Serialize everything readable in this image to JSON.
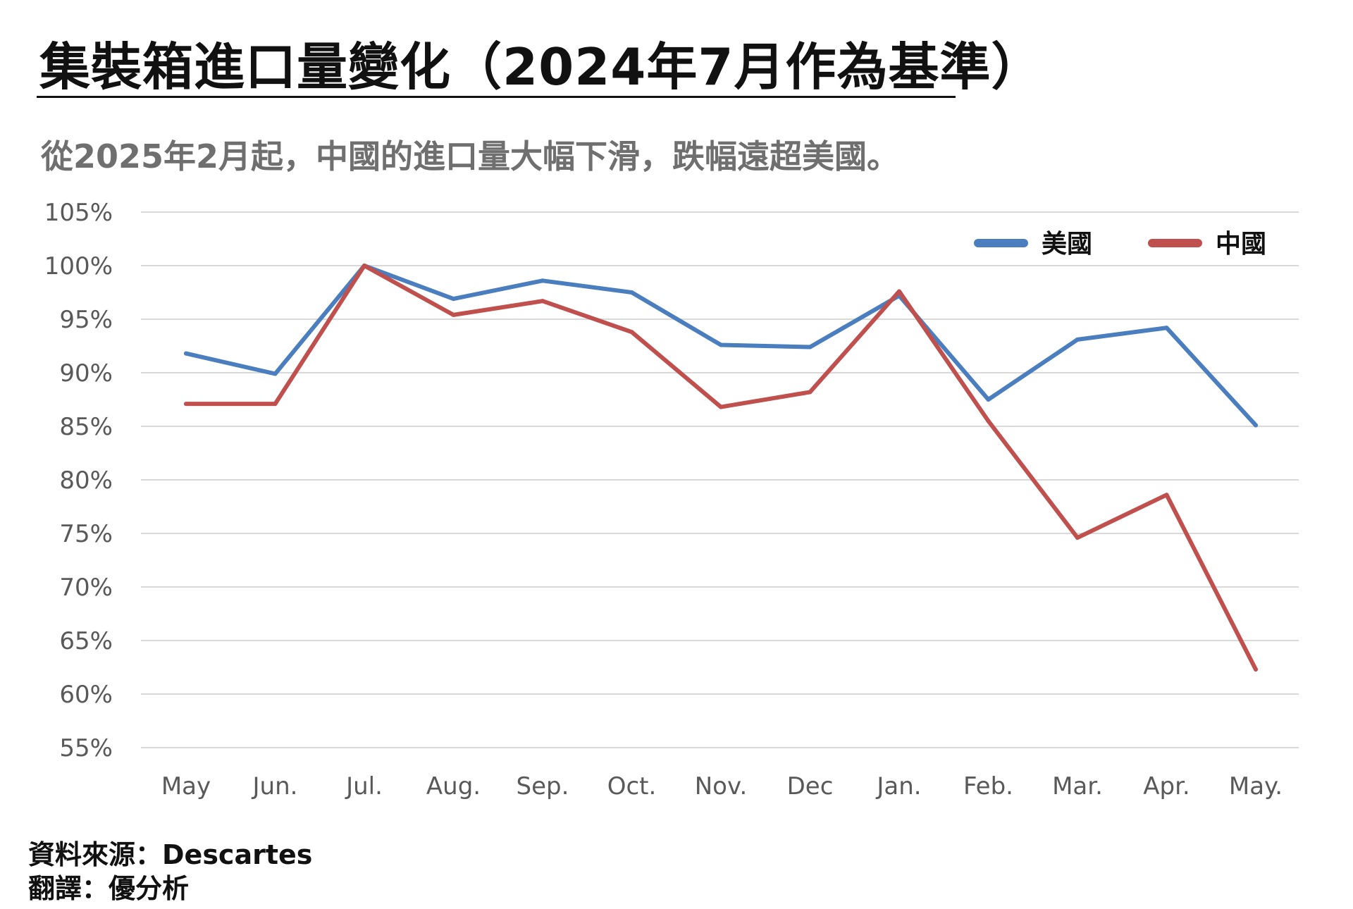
{
  "header": {
    "title": "集裝箱進口量變化（2024年7月作為基準）",
    "subtitle": "從2025年2月起，中國的進口量大幅下滑，跌幅遠超美國。"
  },
  "footer": {
    "source": "資料來源：Descartes",
    "translator": "翻譯：優分析"
  },
  "chart_data": {
    "type": "line",
    "title": "",
    "xlabel": "",
    "ylabel": "",
    "categories": [
      "May",
      "Jun.",
      "Jul.",
      "Aug.",
      "Sep.",
      "Oct.",
      "Nov.",
      "Dec",
      "Jan.",
      "Feb.",
      "Mar.",
      "Apr.",
      "May."
    ],
    "y_ticks": [
      "105%",
      "100%",
      "95%",
      "90%",
      "85%",
      "80%",
      "75%",
      "70%",
      "65%",
      "60%",
      "55%"
    ],
    "ylim": [
      55,
      105
    ],
    "grid": true,
    "legend_position": "top-right",
    "series": [
      {
        "name": "美國",
        "color": "#4a7ebf",
        "values": [
          91.8,
          89.9,
          100,
          96.9,
          98.6,
          97.5,
          92.6,
          92.4,
          97.2,
          87.5,
          93.1,
          94.2,
          85.1
        ]
      },
      {
        "name": "中國",
        "color": "#c0504d",
        "values": [
          87.1,
          87.1,
          100,
          95.4,
          96.7,
          93.8,
          86.8,
          88.2,
          97.6,
          85.5,
          74.6,
          78.6,
          62.3
        ]
      }
    ]
  }
}
